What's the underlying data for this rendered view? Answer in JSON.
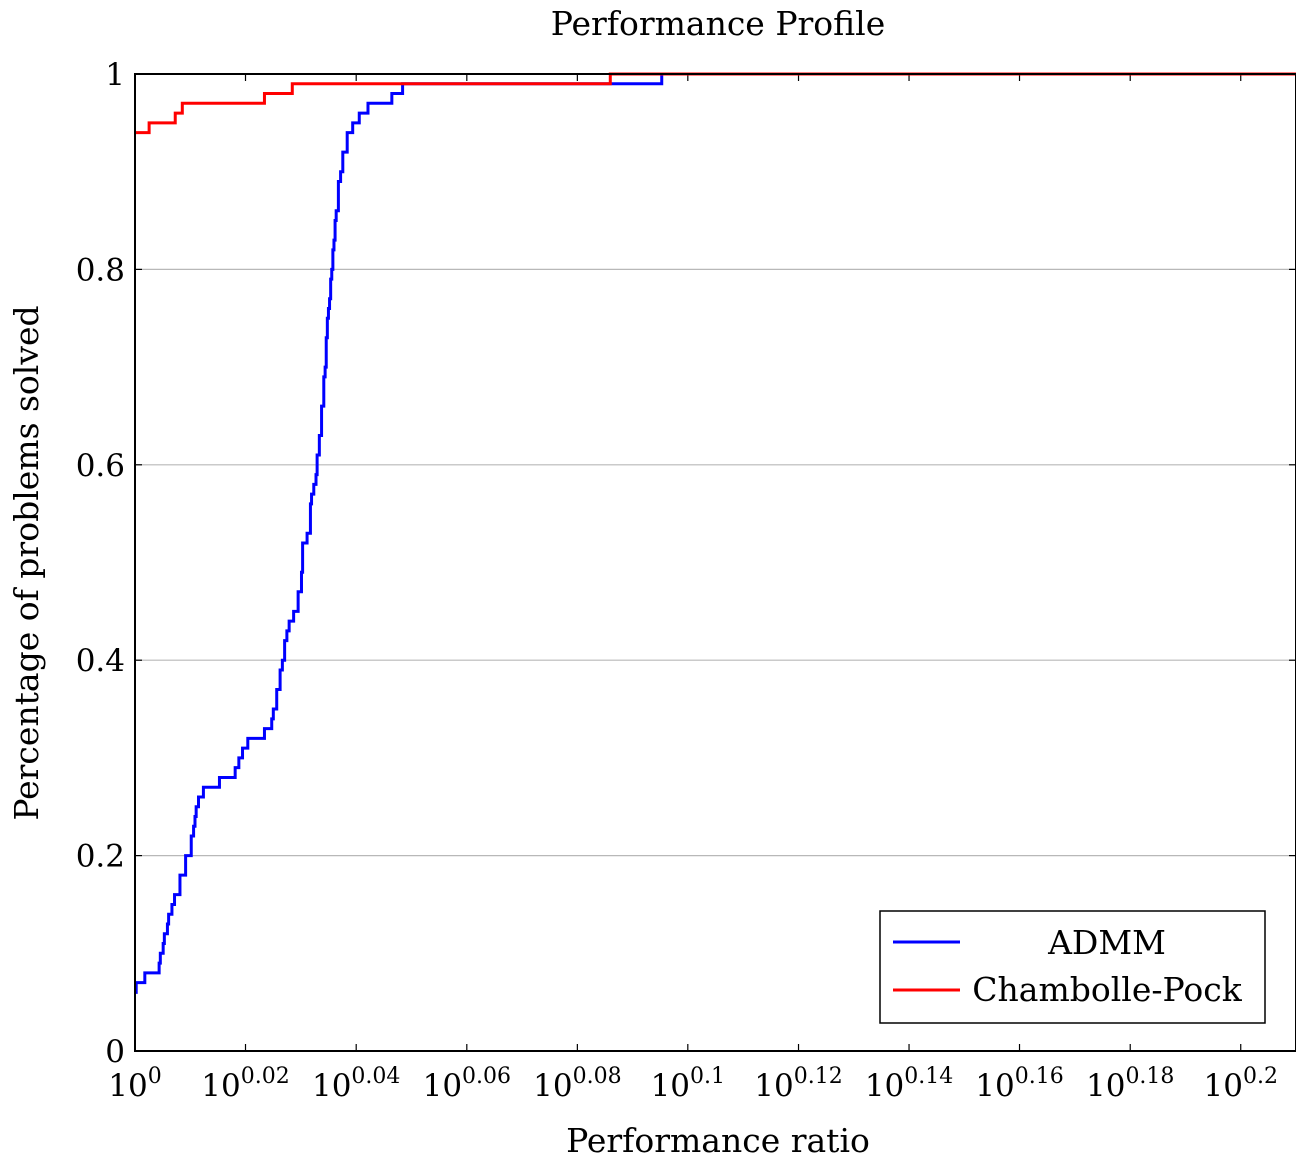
{
  "chart_data": {
    "type": "line",
    "title": "Performance Profile",
    "xlabel": "Performance ratio",
    "ylabel": "Percentage of problems solved",
    "x_scale": "log10",
    "x_tick_base": "10",
    "xlim": [
      1.0,
      1.6218
    ],
    "ylim": [
      0,
      1
    ],
    "grid": "horizontal",
    "legend_position": "bottom-right",
    "x_ticks": [
      {
        "base": "10",
        "exp": "0",
        "value": 1.0
      },
      {
        "base": "10",
        "exp": "0.02",
        "value": 1.0471
      },
      {
        "base": "10",
        "exp": "0.04",
        "value": 1.0965
      },
      {
        "base": "10",
        "exp": "0.06",
        "value": 1.1482
      },
      {
        "base": "10",
        "exp": "0.08",
        "value": 1.2023
      },
      {
        "base": "10",
        "exp": "0.1",
        "value": 1.2589
      },
      {
        "base": "10",
        "exp": "0.12",
        "value": 1.3183
      },
      {
        "base": "10",
        "exp": "0.14",
        "value": 1.3804
      },
      {
        "base": "10",
        "exp": "0.16",
        "value": 1.4454
      },
      {
        "base": "10",
        "exp": "0.18",
        "value": 1.5136
      },
      {
        "base": "10",
        "exp": "0.2",
        "value": 1.5849
      }
    ],
    "y_ticks": [
      {
        "label": "0",
        "value": 0
      },
      {
        "label": "0.2",
        "value": 0.2
      },
      {
        "label": "0.4",
        "value": 0.4
      },
      {
        "label": "0.6",
        "value": 0.6
      },
      {
        "label": "0.8",
        "value": 0.8
      },
      {
        "label": "1",
        "value": 1
      }
    ],
    "series": [
      {
        "name": "ADMM",
        "color": "#0000ff",
        "step": true,
        "x": [
          1.0,
          1.0005,
          1.0041,
          1.0101,
          1.0106,
          1.0118,
          1.0123,
          1.0136,
          1.0141,
          1.0155,
          1.0166,
          1.0189,
          1.0213,
          1.0237,
          1.0247,
          1.0253,
          1.0258,
          1.0268,
          1.0289,
          1.0358,
          1.0426,
          1.0442,
          1.0458,
          1.0481,
          1.0554,
          1.0586,
          1.0593,
          1.0608,
          1.0623,
          1.0633,
          1.0643,
          1.0653,
          1.0663,
          1.0683,
          1.0703,
          1.0718,
          1.0723,
          1.0743,
          1.0758,
          1.0763,
          1.0773,
          1.0783,
          1.0788,
          1.0798,
          1.0808,
          1.0818,
          1.0824,
          1.0829,
          1.0834,
          1.0839,
          1.0844,
          1.0849,
          1.0854,
          1.0859,
          1.0864,
          1.0869,
          1.0874,
          1.0884,
          1.0894,
          1.0904,
          1.0924,
          1.0949,
          1.0979,
          1.1019,
          1.1129,
          1.1179,
          1.12,
          1.2453,
          1.6218
        ],
        "y": [
          0.06,
          0.07,
          0.08,
          0.09,
          0.1,
          0.11,
          0.12,
          0.13,
          0.14,
          0.15,
          0.16,
          0.18,
          0.2,
          0.22,
          0.23,
          0.24,
          0.25,
          0.26,
          0.27,
          0.28,
          0.29,
          0.3,
          0.31,
          0.32,
          0.33,
          0.34,
          0.35,
          0.37,
          0.39,
          0.4,
          0.42,
          0.43,
          0.44,
          0.45,
          0.47,
          0.49,
          0.52,
          0.53,
          0.56,
          0.57,
          0.58,
          0.59,
          0.61,
          0.63,
          0.66,
          0.69,
          0.7,
          0.73,
          0.75,
          0.76,
          0.77,
          0.79,
          0.8,
          0.82,
          0.83,
          0.85,
          0.86,
          0.89,
          0.9,
          0.92,
          0.94,
          0.95,
          0.96,
          0.97,
          0.98,
          0.99,
          0.99,
          1.0,
          1.0
        ]
      },
      {
        "name": "Chambolle-Pock",
        "color": "#ff0000",
        "step": true,
        "x": [
          1.0,
          1.0059,
          1.0169,
          1.0199,
          1.0554,
          1.0677,
          1.2189,
          1.6218
        ],
        "y": [
          0.94,
          0.95,
          0.96,
          0.97,
          0.98,
          0.99,
          1.0,
          1.0
        ]
      }
    ]
  }
}
